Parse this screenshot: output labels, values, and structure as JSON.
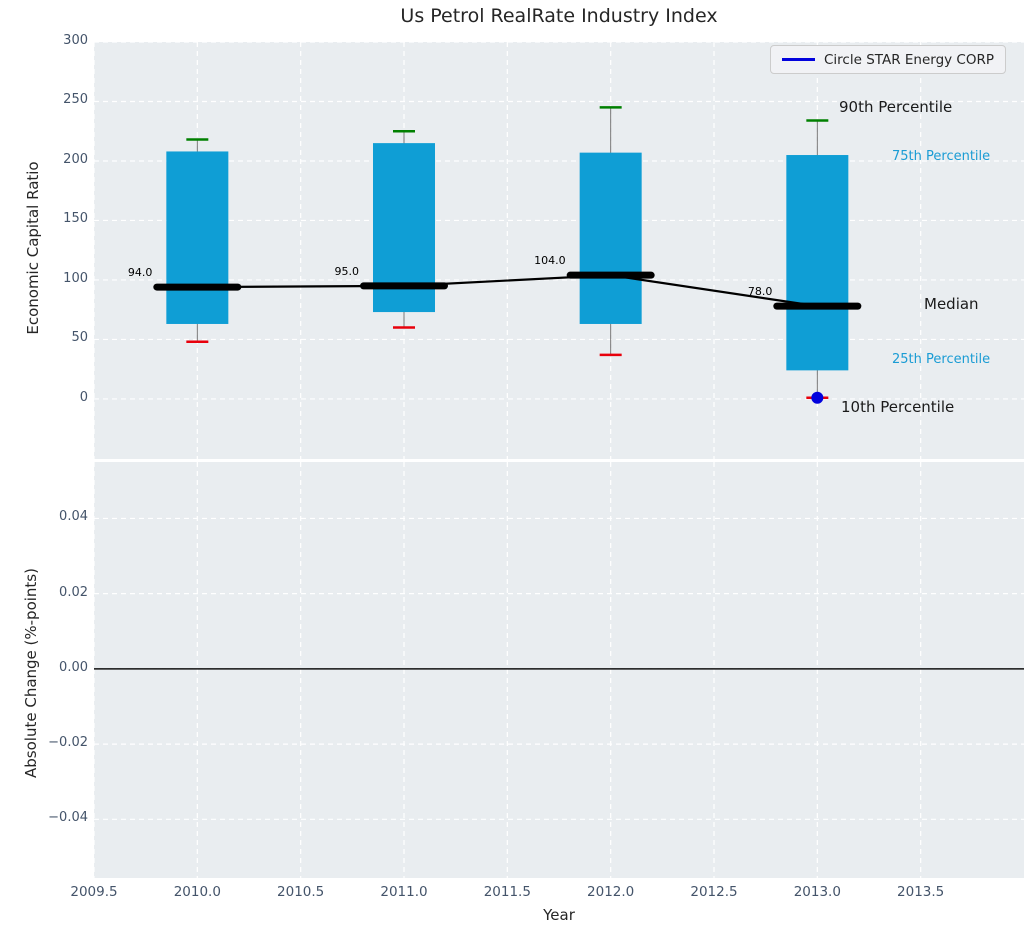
{
  "colors": {
    "bar": "#0f9ed5",
    "p90_cap": "#008000",
    "p10_cap": "#e8000b",
    "median_line": "#000000",
    "company": "#0202dd",
    "whisker": "#777777",
    "tick_label": "#44546a",
    "annotation_cyan": "#1a9cd4",
    "annotation_black": "#1a1a1a",
    "axes_bg": "#e9edf0",
    "grid": "#ffffff",
    "legend_bg": "#f1f2f5",
    "legend_border": "#cccccc",
    "title_text": "#262626",
    "zero_line": "#111111"
  },
  "chart_data": [
    {
      "type": "bar",
      "title": "Us Petrol RealRate Industry Index",
      "ylabel": "Economic Capital Ratio",
      "xlim": [
        2009.5,
        2014.0
      ],
      "ylim": [
        -50.5,
        300
      ],
      "ytick_values": [
        0,
        50,
        100,
        150,
        200,
        250,
        300
      ],
      "ytick_labels": [
        "0",
        "50",
        "100",
        "150",
        "200",
        "250",
        "300"
      ],
      "xtick_values": [
        2009.5,
        2010.0,
        2010.5,
        2011.0,
        2011.5,
        2012.0,
        2012.5,
        2013.0,
        2013.5
      ],
      "grid": "white dashed",
      "legend": {
        "label": "Circle STAR Energy CORP",
        "position": "upper right"
      },
      "years": [
        2010,
        2011,
        2012,
        2013
      ],
      "series": [
        {
          "name": "90th Percentile",
          "values": [
            218,
            225,
            245,
            234
          ]
        },
        {
          "name": "75th Percentile",
          "values": [
            208,
            215,
            207,
            205
          ]
        },
        {
          "name": "Median",
          "values": [
            94,
            95,
            104,
            78
          ]
        },
        {
          "name": "25th Percentile",
          "values": [
            63,
            73,
            63,
            24
          ]
        },
        {
          "name": "10th Percentile",
          "values": [
            48,
            60,
            37,
            1
          ]
        }
      ],
      "median_labels": [
        "94.0",
        "95.0",
        "104.0",
        "78.0"
      ],
      "company_points": [
        {
          "x": 2013,
          "y": 1
        }
      ],
      "annotations": {
        "p90": "90th Percentile",
        "p75": "75th Percentile",
        "median": "Median",
        "p25": "25th Percentile",
        "p10": "10th Percentile"
      }
    },
    {
      "type": "line",
      "ylabel": "Absolute Change (%-points)",
      "xlabel": "Year",
      "xlim": [
        2009.5,
        2014.0
      ],
      "ylim": [
        -0.0556,
        0.055
      ],
      "ytick_values": [
        0.04,
        0.02,
        0,
        -0.02,
        -0.04
      ],
      "ytick_labels": [
        "0.04",
        "0.02",
        "0.00",
        "−0.02",
        "−0.04"
      ],
      "xtick_values": [
        2009.5,
        2010.0,
        2010.5,
        2011.0,
        2011.5,
        2012.0,
        2012.5,
        2013.0,
        2013.5
      ],
      "xtick_labels": [
        "2009.5",
        "2010.0",
        "2010.5",
        "2011.0",
        "2011.5",
        "2012.0",
        "2012.5",
        "2013.0",
        "2013.5"
      ],
      "zero_line": 0,
      "series": []
    }
  ]
}
